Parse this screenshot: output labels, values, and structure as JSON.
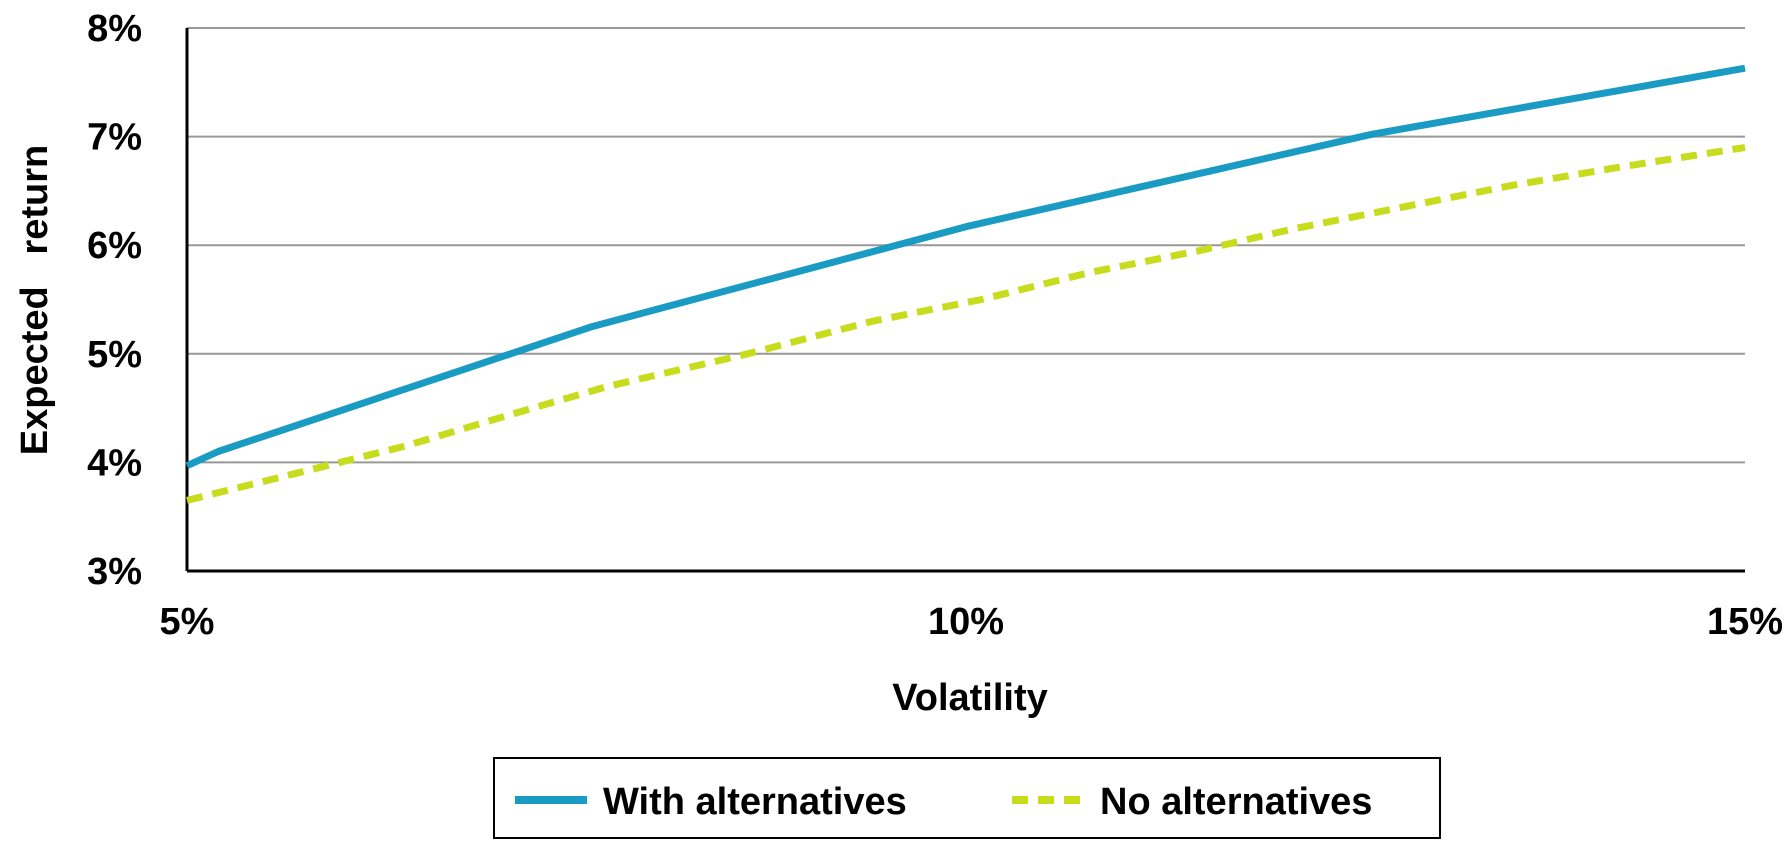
{
  "chart_data": {
    "type": "line",
    "title": "",
    "xlabel": "Volatility",
    "ylabel": "Expected   return",
    "xlim": [
      5,
      15
    ],
    "ylim": [
      3,
      8
    ],
    "x_ticks": [
      "5%",
      "10%",
      "15%"
    ],
    "y_ticks": [
      "3%",
      "4%",
      "5%",
      "6%",
      "7%",
      "8%"
    ],
    "grid": "horizontal",
    "legend_position": "bottom-center",
    "series": [
      {
        "name": "With alternatives",
        "color": "#1A9BC3",
        "style": "solid",
        "points": [
          [
            5.0,
            3.97
          ],
          [
            5.2,
            4.1
          ],
          [
            7.6,
            5.25
          ],
          [
            10.0,
            6.17
          ],
          [
            12.6,
            7.02
          ],
          [
            15.0,
            7.63
          ]
        ]
      },
      {
        "name": "No alternatives",
        "color": "#C8DC1E",
        "style": "dashed",
        "points": [
          [
            5.0,
            3.65
          ],
          [
            5.7,
            3.9
          ],
          [
            6.4,
            4.15
          ],
          [
            7.1,
            4.45
          ],
          [
            7.7,
            4.7
          ],
          [
            8.6,
            5.0
          ],
          [
            9.4,
            5.3
          ],
          [
            10.1,
            5.5
          ],
          [
            10.8,
            5.75
          ],
          [
            11.5,
            5.95
          ],
          [
            12.1,
            6.15
          ],
          [
            12.8,
            6.35
          ],
          [
            13.5,
            6.55
          ],
          [
            14.2,
            6.72
          ],
          [
            15.0,
            6.9
          ]
        ]
      }
    ]
  }
}
